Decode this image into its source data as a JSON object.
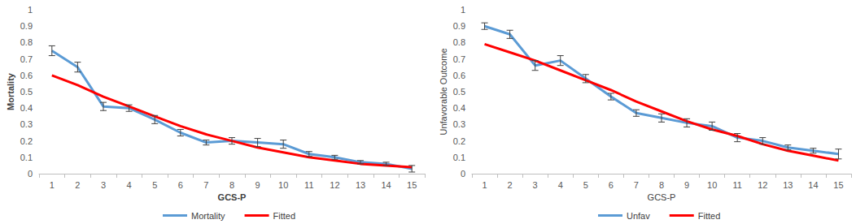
{
  "chart_data": [
    {
      "type": "line",
      "x_label": "GCS-P",
      "y_label": "Mortality",
      "categories": [
        "1",
        "2",
        "3",
        "4",
        "5",
        "6",
        "7",
        "8",
        "9",
        "10",
        "11",
        "12",
        "13",
        "14",
        "15"
      ],
      "series": [
        {
          "name": "Mortality",
          "color": "#5b9bd5",
          "marker": "none",
          "values": [
            0.75,
            0.65,
            0.41,
            0.4,
            0.33,
            0.25,
            0.19,
            0.2,
            0.19,
            0.18,
            0.12,
            0.1,
            0.07,
            0.06,
            0.03
          ],
          "errors": [
            0.03,
            0.03,
            0.025,
            0.02,
            0.025,
            0.02,
            0.015,
            0.02,
            0.025,
            0.025,
            0.015,
            0.012,
            0.01,
            0.01,
            0.02
          ]
        },
        {
          "name": "Fitted",
          "color": "#ff0000",
          "marker": "none",
          "values": [
            0.6,
            0.54,
            0.47,
            0.41,
            0.35,
            0.29,
            0.24,
            0.2,
            0.16,
            0.13,
            0.1,
            0.08,
            0.06,
            0.05,
            0.04
          ]
        }
      ],
      "ylim": [
        0,
        1
      ],
      "yticks": [
        0,
        0.1,
        0.2,
        0.3,
        0.4,
        0.5,
        0.6,
        0.7,
        0.8,
        0.9,
        1
      ],
      "grid": false,
      "legend": "bottom"
    },
    {
      "type": "line",
      "x_label": "GCS-P",
      "y_label": "Unfavorable Outcome",
      "categories": [
        "1",
        "2",
        "3",
        "4",
        "5",
        "6",
        "7",
        "8",
        "9",
        "10",
        "11",
        "12",
        "13",
        "14",
        "15"
      ],
      "series": [
        {
          "name": "Unfav",
          "color": "#5b9bd5",
          "marker": "none",
          "values": [
            0.9,
            0.85,
            0.66,
            0.69,
            0.58,
            0.47,
            0.37,
            0.34,
            0.31,
            0.29,
            0.22,
            0.2,
            0.16,
            0.14,
            0.12
          ],
          "errors": [
            0.02,
            0.025,
            0.03,
            0.03,
            0.025,
            0.02,
            0.02,
            0.025,
            0.025,
            0.025,
            0.025,
            0.02,
            0.015,
            0.015,
            0.03
          ]
        },
        {
          "name": "Fitted",
          "color": "#ff0000",
          "marker": "none",
          "values": [
            0.79,
            0.74,
            0.69,
            0.63,
            0.57,
            0.51,
            0.44,
            0.38,
            0.32,
            0.27,
            0.23,
            0.18,
            0.14,
            0.11,
            0.08
          ]
        }
      ],
      "ylim": [
        0,
        1
      ],
      "yticks": [
        0,
        0.1,
        0.2,
        0.3,
        0.4,
        0.5,
        0.6,
        0.7,
        0.8,
        0.9,
        1
      ],
      "grid": false,
      "legend": "bottom"
    }
  ]
}
